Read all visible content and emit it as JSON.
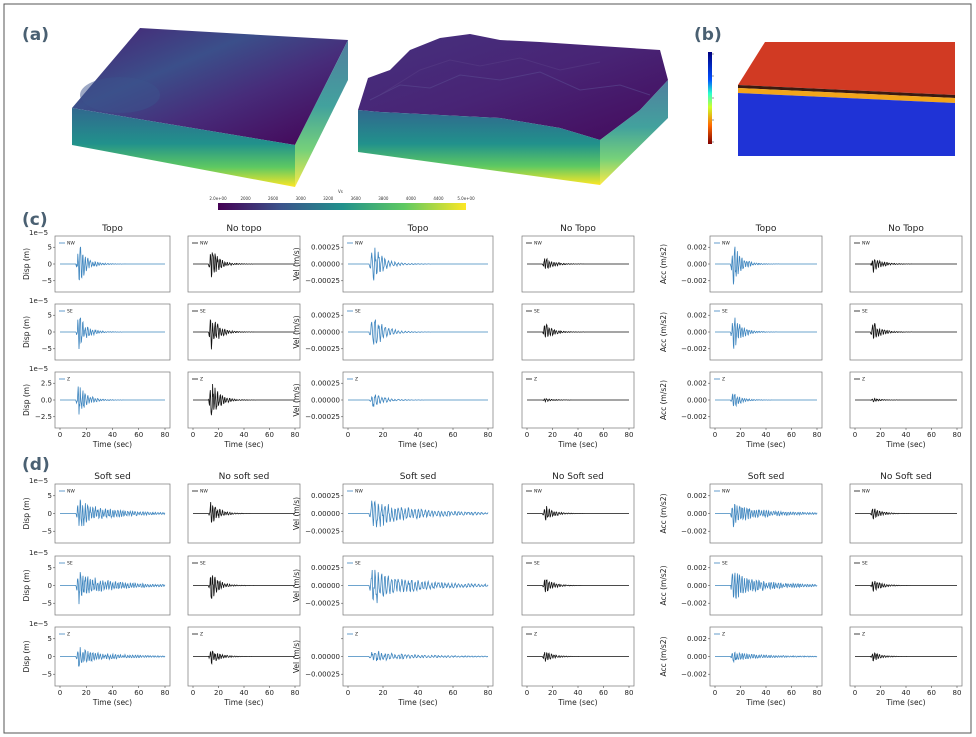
{
  "panels": {
    "a": "(a)",
    "b": "(b)",
    "c": "(c)",
    "d": "(d)"
  },
  "colors": {
    "topo": "#3f86bf",
    "notopo": "#111111",
    "frame": "#777777"
  },
  "colorbar_a": {
    "label": "Vs",
    "ticks": [
      "2.0e+00",
      "2000",
      "2600",
      "3000",
      "3200",
      "3600",
      "3800",
      "4000",
      "4400",
      "5.0e+00"
    ]
  },
  "colorbar_b": {
    "ticks": [
      "",
      "",
      "",
      "",
      ""
    ]
  },
  "chart_data": [
    {
      "type": "line",
      "group": "c",
      "columns": [
        {
          "title": "Topo",
          "series_color": "topo"
        },
        {
          "title": "No topo",
          "series_color": "notopo"
        },
        {
          "title": "Topo",
          "series_color": "topo"
        },
        {
          "title": "No Topo",
          "series_color": "notopo"
        },
        {
          "title": "Topo",
          "series_color": "topo"
        },
        {
          "title": "No Topo",
          "series_color": "notopo"
        }
      ],
      "quantities": [
        {
          "ylabel": "Disp (m)",
          "exponent": "1e−5",
          "yticks": [
            "5",
            "0",
            "−5"
          ],
          "yticks_z": [
            "2.5",
            "0.0",
            "−2.5"
          ],
          "ylim": [
            -8,
            8
          ]
        },
        {
          "ylabel": "Vel (m/s)",
          "exponent": "",
          "yticks": [
            "0.00025",
            "0.00000",
            "−0.00025"
          ],
          "yticks_z": [
            "0.00025",
            "0.00000",
            "−0.00025"
          ],
          "ylim": [
            -0.0004,
            0.0004
          ]
        },
        {
          "ylabel": "Acc (m/s2)",
          "exponent": "",
          "yticks": [
            "0.002",
            "0.000",
            "−0.002"
          ],
          "yticks_z": [
            "0.002",
            "0.000",
            "−0.002"
          ],
          "ylim": [
            -0.003,
            0.003
          ]
        }
      ],
      "components": [
        "NW",
        "SE",
        "Z"
      ],
      "xlabel": "Time (sec)",
      "xticks": [
        0,
        20,
        40,
        60,
        80
      ],
      "xlim": [
        0,
        80
      ],
      "peak_time": 17,
      "amplitudes": {
        "Disp (m)": {
          "Topo": [
            0.9,
            0.85,
            0.8
          ],
          "No topo": [
            0.75,
            0.8,
            0.9
          ]
        },
        "Vel (m/s)": {
          "Topo": [
            0.85,
            0.85,
            0.35
          ],
          "No Topo": [
            0.35,
            0.4,
            0.08
          ]
        },
        "Acc (m/s2)": {
          "Topo": [
            0.95,
            0.9,
            0.35
          ],
          "No Topo": [
            0.4,
            0.45,
            0.08
          ]
        }
      }
    },
    {
      "type": "line",
      "group": "d",
      "columns": [
        {
          "title": "Soft sed",
          "series_color": "topo"
        },
        {
          "title": "No soft sed",
          "series_color": "notopo"
        },
        {
          "title": "Soft sed",
          "series_color": "topo"
        },
        {
          "title": "No Soft sed",
          "series_color": "notopo"
        },
        {
          "title": "Soft sed",
          "series_color": "topo"
        },
        {
          "title": "No Soft sed",
          "series_color": "notopo"
        }
      ],
      "quantities": [
        {
          "ylabel": "Disp (m)",
          "exponent": "1e−5",
          "yticks": [
            "5",
            "0",
            "−5"
          ],
          "yticks_z": [
            "5",
            "0",
            "−5"
          ],
          "ylim": [
            -7,
            7
          ]
        },
        {
          "ylabel": "Vel (m/s)",
          "exponent": "",
          "yticks": [
            "0.00025",
            "0.00000",
            "−0.00025"
          ],
          "yticks_z": [
            "",
            "0.00000",
            "−0.00025"
          ],
          "ylim": [
            -0.00035,
            0.00035
          ]
        },
        {
          "ylabel": "Acc (m/s2)",
          "exponent": "",
          "yticks": [
            "0.002",
            "0.000",
            "−0.002"
          ],
          "yticks_z": [
            "0.002",
            "0.000",
            "−0.002"
          ],
          "ylim": [
            -0.0025,
            0.0025
          ]
        }
      ],
      "components": [
        "NW",
        "SE",
        "Z"
      ],
      "xlabel": "Time (sec)",
      "xticks": [
        0,
        20,
        40,
        60,
        80
      ],
      "xlim": [
        0,
        80
      ],
      "peak_time": 17,
      "amplitudes": {
        "Disp (m)": {
          "Soft sed": [
            0.75,
            0.8,
            0.45
          ],
          "No soft sed": [
            0.55,
            0.6,
            0.4
          ]
        },
        "Vel (m/s)": {
          "Soft sed": [
            0.85,
            0.9,
            0.3
          ],
          "No Soft sed": [
            0.35,
            0.35,
            0.25
          ]
        },
        "Acc (m/s2)": {
          "Soft sed": [
            0.6,
            0.75,
            0.25
          ],
          "No Soft sed": [
            0.3,
            0.3,
            0.2
          ]
        }
      }
    }
  ]
}
